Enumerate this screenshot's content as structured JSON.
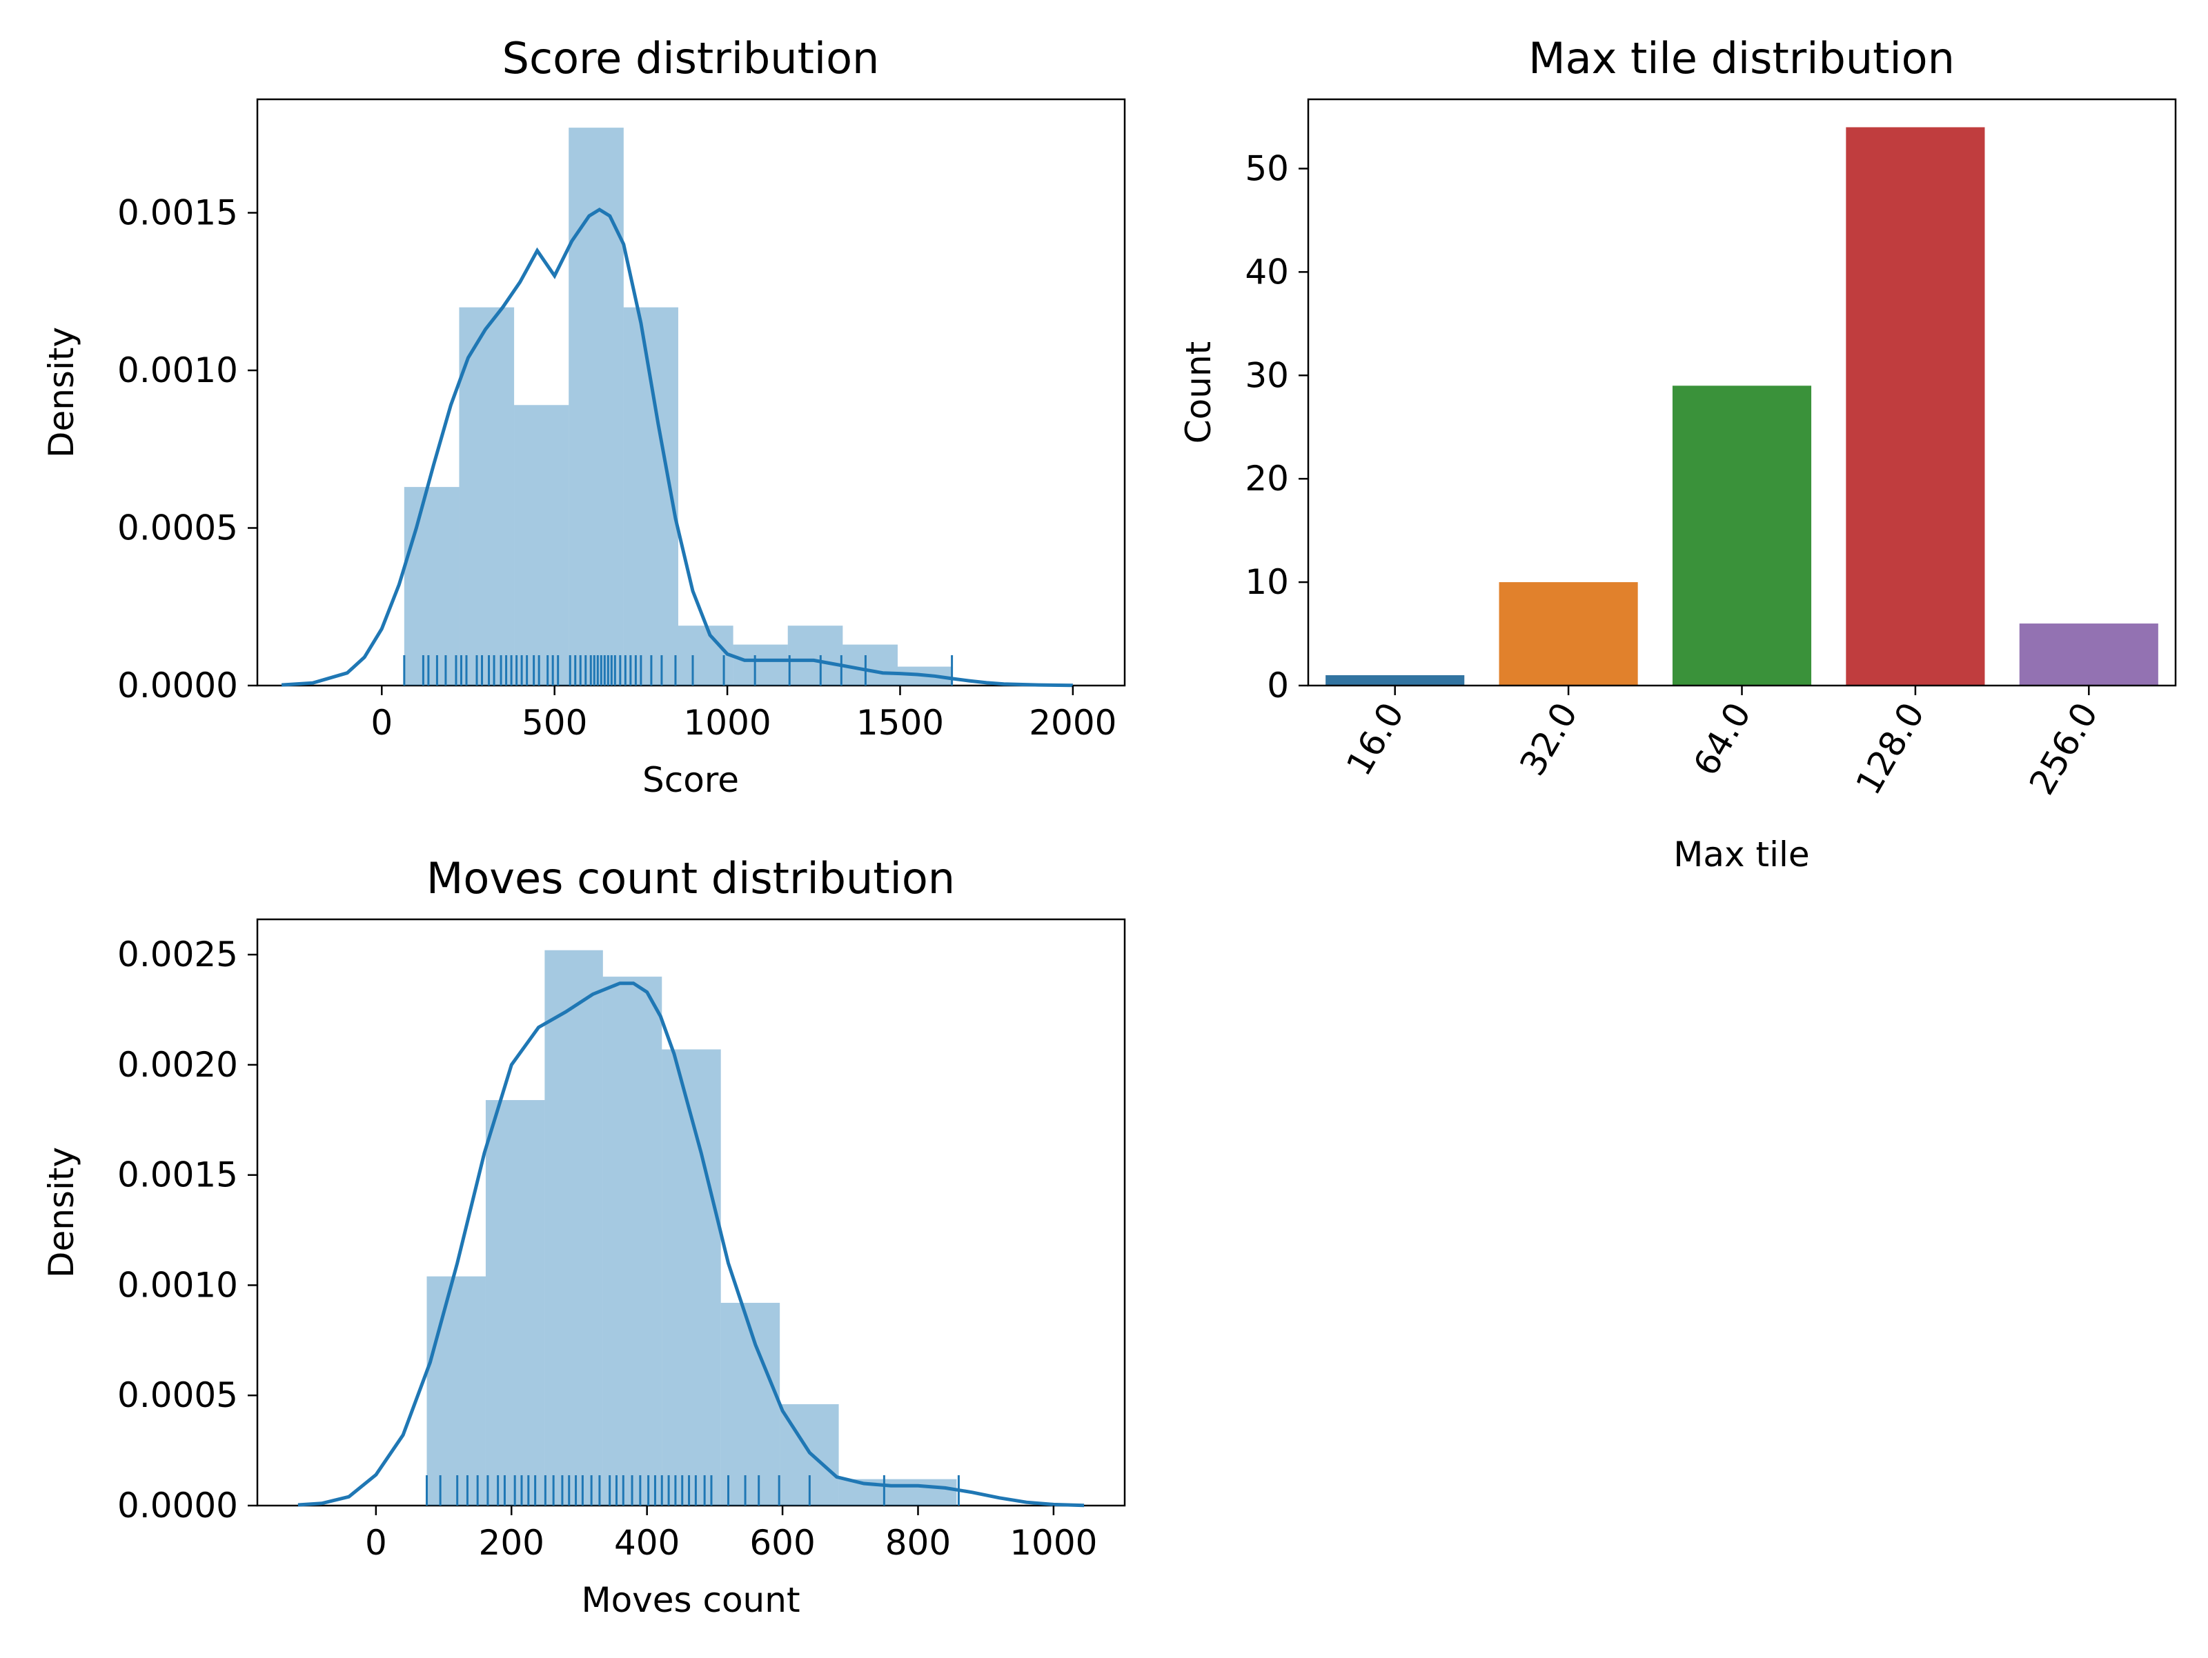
{
  "chart_data": [
    {
      "id": "score",
      "type": "histogram",
      "title": "Score distribution",
      "xlabel": "Score",
      "ylabel": "Density",
      "xlim": [
        -360,
        2150
      ],
      "ylim": [
        0,
        0.00186
      ],
      "xticks": [
        0,
        500,
        1000,
        1500,
        2000
      ],
      "xtick_labels": [
        "0",
        "500",
        "1000",
        "1500",
        "2000"
      ],
      "yticks": [
        0,
        0.0005,
        0.001,
        0.0015
      ],
      "ytick_labels": [
        "0.0000",
        "0.0005",
        "0.0010",
        "0.0015"
      ],
      "bin_edges": [
        65,
        224,
        383,
        541,
        700,
        858,
        1017,
        1175,
        1334,
        1493,
        1651
      ],
      "bin_density": [
        0.00063,
        0.0012,
        0.00089,
        0.00177,
        0.0012,
        0.00019,
        0.00013,
        0.00019,
        0.00013,
        6e-05
      ],
      "kde": {
        "x": [
          -290,
          -200,
          -100,
          -50,
          0,
          50,
          100,
          150,
          200,
          250,
          300,
          350,
          400,
          450,
          500,
          550,
          600,
          630,
          660,
          700,
          750,
          800,
          850,
          900,
          950,
          1000,
          1050,
          1100,
          1150,
          1200,
          1250,
          1300,
          1350,
          1400,
          1450,
          1500,
          1550,
          1600,
          1650,
          1700,
          1750,
          1800,
          1900,
          2000
        ],
        "y": [
          2e-06,
          8e-06,
          4e-05,
          9e-05,
          0.00018,
          0.00032,
          0.0005,
          0.0007,
          0.00089,
          0.00104,
          0.00113,
          0.0012,
          0.00128,
          0.00138,
          0.0013,
          0.00141,
          0.00149,
          0.00151,
          0.00149,
          0.0014,
          0.00115,
          0.00083,
          0.00053,
          0.0003,
          0.00016,
          0.0001,
          8e-05,
          8e-05,
          8e-05,
          8e-05,
          8e-05,
          7e-05,
          6e-05,
          5e-05,
          4e-05,
          3.8e-05,
          3.5e-05,
          3e-05,
          2.2e-05,
          1.5e-05,
          9e-06,
          5e-06,
          2e-06,
          5e-07
        ]
      },
      "rug": [
        65,
        120,
        135,
        160,
        185,
        215,
        230,
        245,
        275,
        290,
        310,
        325,
        345,
        360,
        375,
        390,
        405,
        420,
        440,
        455,
        480,
        495,
        510,
        545,
        560,
        575,
        590,
        605,
        615,
        625,
        635,
        645,
        655,
        665,
        675,
        690,
        705,
        720,
        735,
        750,
        780,
        810,
        850,
        900,
        990,
        1080,
        1180,
        1270,
        1330,
        1400,
        1650
      ],
      "color": "#1f77b4"
    },
    {
      "id": "maxtile",
      "type": "bar",
      "title": "Max tile distribution",
      "xlabel": "Max tile",
      "ylabel": "Count",
      "ylim": [
        0,
        56.7
      ],
      "yticks": [
        0,
        10,
        20,
        30,
        40,
        50
      ],
      "ytick_labels": [
        "0",
        "10",
        "20",
        "30",
        "40",
        "50"
      ],
      "categories": [
        "16.0",
        "32.0",
        "64.0",
        "128.0",
        "256.0"
      ],
      "values": [
        1,
        10,
        29,
        54,
        6
      ],
      "colors": [
        "#3274a1",
        "#e1812c",
        "#3a923a",
        "#c03d3e",
        "#9372b2"
      ]
    },
    {
      "id": "moves",
      "type": "histogram",
      "title": "Moves count distribution",
      "xlabel": "Moves count",
      "ylabel": "Density",
      "xlim": [
        -175,
        1105
      ],
      "ylim": [
        0,
        0.00266
      ],
      "xticks": [
        0,
        200,
        400,
        600,
        800,
        1000
      ],
      "xtick_labels": [
        "0",
        "200",
        "400",
        "600",
        "800",
        "1000"
      ],
      "yticks": [
        0,
        0.0005,
        0.001,
        0.0015,
        0.002,
        0.0025
      ],
      "ytick_labels": [
        "0.0000",
        "0.0005",
        "0.0010",
        "0.0015",
        "0.0020",
        "0.0025"
      ],
      "bin_edges": [
        75,
        162,
        249,
        335,
        422,
        509,
        596,
        683,
        770,
        857
      ],
      "bin_density": [
        0.00104,
        0.00184,
        0.00252,
        0.0024,
        0.00207,
        0.00092,
        0.00046,
        0.00012,
        0.00012
      ],
      "kde": {
        "x": [
          -115,
          -80,
          -40,
          0,
          40,
          80,
          120,
          160,
          200,
          240,
          280,
          320,
          360,
          380,
          400,
          420,
          440,
          480,
          520,
          560,
          600,
          640,
          680,
          720,
          760,
          800,
          840,
          880,
          920,
          960,
          1000,
          1045
        ],
        "y": [
          3e-06,
          1e-05,
          4e-05,
          0.00014,
          0.00032,
          0.00065,
          0.0011,
          0.0016,
          0.002,
          0.00217,
          0.00224,
          0.00232,
          0.00237,
          0.00237,
          0.00233,
          0.00222,
          0.00205,
          0.0016,
          0.0011,
          0.00073,
          0.00043,
          0.00024,
          0.00013,
          0.0001,
          9e-05,
          9e-05,
          8e-05,
          6e-05,
          3.5e-05,
          1.5e-05,
          5e-06,
          1e-06
        ]
      },
      "rug": [
        75,
        95,
        120,
        135,
        150,
        165,
        180,
        190,
        205,
        215,
        225,
        235,
        250,
        262,
        275,
        285,
        295,
        305,
        318,
        330,
        345,
        355,
        365,
        378,
        390,
        402,
        412,
        422,
        432,
        442,
        452,
        462,
        472,
        485,
        495,
        520,
        545,
        565,
        595,
        640,
        750,
        860
      ],
      "color": "#1f77b4"
    }
  ]
}
